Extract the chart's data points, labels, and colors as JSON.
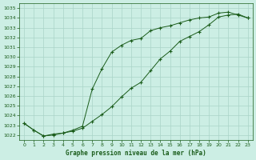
{
  "title": "Graphe pression niveau de la mer (hPa)",
  "bg_color": "#cceee4",
  "grid_color": "#aad4c8",
  "line_color": "#1a5c1a",
  "xlim": [
    -0.5,
    23.5
  ],
  "ylim": [
    1021.5,
    1035.5
  ],
  "yticks": [
    1022,
    1023,
    1024,
    1025,
    1026,
    1027,
    1028,
    1029,
    1030,
    1031,
    1032,
    1033,
    1034,
    1035
  ],
  "xticks": [
    0,
    1,
    2,
    3,
    4,
    5,
    6,
    7,
    8,
    9,
    10,
    11,
    12,
    13,
    14,
    15,
    16,
    17,
    18,
    19,
    20,
    21,
    22,
    23
  ],
  "line1_x": [
    0,
    1,
    2,
    3,
    4,
    5,
    6,
    7,
    8,
    9,
    10,
    11,
    12,
    13,
    14,
    15,
    16,
    17,
    18,
    19,
    20,
    21,
    22,
    23
  ],
  "line1_y": [
    1023.2,
    1022.5,
    1021.9,
    1022.0,
    1022.2,
    1022.4,
    1022.7,
    1023.4,
    1024.1,
    1024.9,
    1025.9,
    1026.8,
    1027.4,
    1028.6,
    1029.8,
    1030.6,
    1031.6,
    1032.1,
    1032.6,
    1033.3,
    1034.1,
    1034.3,
    1034.4,
    1034.0
  ],
  "line2_x": [
    0,
    1,
    2,
    3,
    4,
    5,
    6,
    7,
    8,
    9,
    10,
    11,
    12,
    13,
    14,
    15,
    16,
    17,
    18,
    19,
    20,
    21,
    22,
    23
  ],
  "line2_y": [
    1023.2,
    1022.5,
    1021.9,
    1022.1,
    1022.2,
    1022.5,
    1022.9,
    1026.7,
    1028.8,
    1030.5,
    1031.2,
    1031.7,
    1031.9,
    1032.7,
    1033.0,
    1033.2,
    1033.5,
    1033.8,
    1034.0,
    1034.1,
    1034.5,
    1034.6,
    1034.3,
    1034.0
  ],
  "figsize": [
    3.2,
    2.0
  ],
  "dpi": 100
}
